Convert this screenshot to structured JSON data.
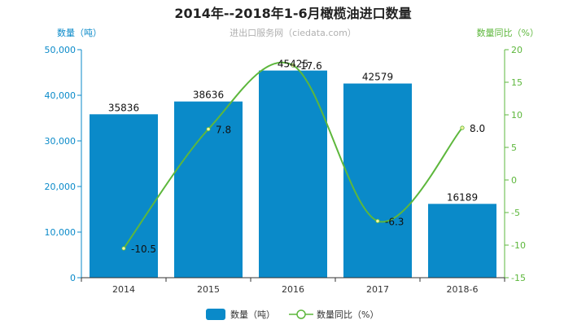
{
  "chart_data": {
    "type": "bar",
    "title": "2014年--2018年1-6月橄榄油进口数量",
    "subtitle": "进出口服务网（ciedata.com）",
    "categories": [
      "2014",
      "2015",
      "2016",
      "2017",
      "2018-6"
    ],
    "y_left": {
      "label": "数量（吨）",
      "range": [
        0,
        50000
      ],
      "ticks": [
        "0",
        "10,000",
        "20,000",
        "30,000",
        "40,000",
        "50,000"
      ]
    },
    "y_right": {
      "label": "数量同比（%）",
      "range": [
        -15,
        20
      ],
      "ticks": [
        "-15",
        "-10",
        "-5",
        "0",
        "5",
        "10",
        "15",
        "20"
      ]
    },
    "series": [
      {
        "name": "数量（吨）",
        "type": "bar",
        "axis": "left",
        "color": "#0a8ac9",
        "values": [
          35836,
          38636,
          45425,
          42579,
          16189
        ],
        "labels": [
          "35836",
          "38636",
          "45425",
          "42579",
          "16189"
        ]
      },
      {
        "name": "数量同比（%）",
        "type": "line",
        "axis": "right",
        "color": "#5db73c",
        "values": [
          -10.5,
          7.8,
          17.6,
          -6.3,
          8.0
        ],
        "labels": [
          "-10.5",
          "7.8",
          "17.6",
          "-6.3",
          "8.0"
        ]
      }
    ],
    "legend": {
      "placement": "bottom",
      "items": [
        "数量（吨）",
        "数量同比（%）"
      ]
    },
    "grid": false
  }
}
